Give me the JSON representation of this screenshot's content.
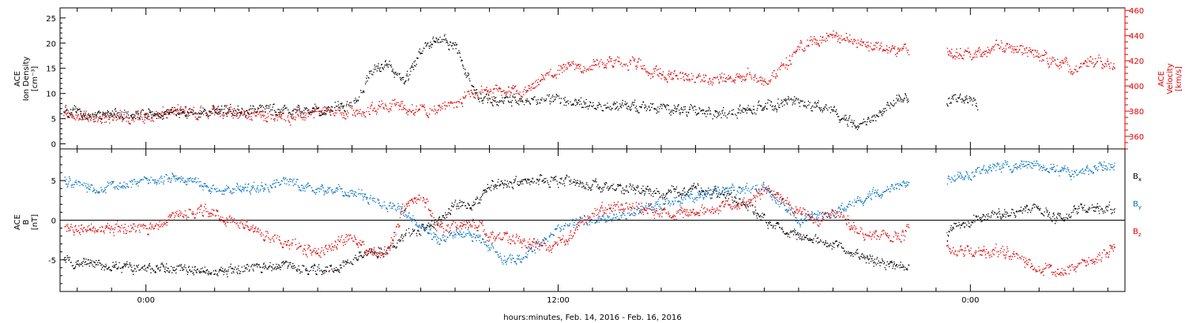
{
  "chart_data": [
    {
      "type": "scatter",
      "panel": "plasma",
      "ylabel_left": [
        "ACE",
        "Ion Density",
        "[cm⁻³]"
      ],
      "ylabel_right": [
        "ACE",
        "Velocity",
        "[km/s]"
      ],
      "xlim_hours": [
        -2.5,
        28.5
      ],
      "ylim_left": [
        -1,
        27
      ],
      "ylim_right": [
        350,
        462
      ],
      "yticks_left": [
        0,
        5,
        10,
        15,
        20,
        25
      ],
      "yticks_right": [
        360,
        380,
        400,
        420,
        440,
        460
      ],
      "colors": {
        "density": "#000000",
        "velocity": "#e00000"
      },
      "series": [
        {
          "axis": "left",
          "color": "#000000",
          "anchors": [
            [
              -2.4,
              7
            ],
            [
              -1.5,
              5.5
            ],
            [
              0,
              6
            ],
            [
              1,
              6.5
            ],
            [
              2,
              6.5
            ],
            [
              3,
              7
            ],
            [
              4,
              7
            ],
            [
              5,
              6.5
            ],
            [
              6,
              8
            ],
            [
              6.5,
              14
            ],
            [
              7,
              16
            ],
            [
              7.5,
              12
            ],
            [
              8,
              19
            ],
            [
              8.5,
              21
            ],
            [
              9,
              19
            ],
            [
              9.4,
              12
            ],
            [
              9.8,
              9
            ],
            [
              11,
              8.5
            ],
            [
              12,
              8.5
            ],
            [
              13,
              8
            ],
            [
              14,
              7.5
            ],
            [
              15,
              7
            ],
            [
              16,
              6.5
            ],
            [
              17,
              6
            ],
            [
              18,
              7.5
            ],
            [
              19,
              8.5
            ],
            [
              20,
              6.5
            ],
            [
              20.5,
              4
            ],
            [
              21,
              5
            ],
            [
              21.6,
              8
            ],
            [
              22,
              9.5
            ],
            [
              23,
              9
            ],
            [
              23.8,
              9
            ],
            [
              24.2,
              8
            ]
          ],
          "gaps": [
            [
              22.2,
              23.3
            ]
          ],
          "noise": 1.0
        },
        {
          "axis": "right",
          "color": "#e00000",
          "anchors": [
            [
              -2.4,
              378
            ],
            [
              -1.5,
              375
            ],
            [
              0,
              376
            ],
            [
              1,
              380
            ],
            [
              2,
              380
            ],
            [
              3,
              378
            ],
            [
              4,
              375
            ],
            [
              5,
              380
            ],
            [
              6,
              378
            ],
            [
              7,
              385
            ],
            [
              8,
              380
            ],
            [
              9,
              385
            ],
            [
              9.5,
              397
            ],
            [
              10,
              395
            ],
            [
              11,
              395
            ],
            [
              11.5,
              405
            ],
            [
              12,
              412
            ],
            [
              12.5,
              415
            ],
            [
              13,
              418
            ],
            [
              14,
              420
            ],
            [
              15,
              410
            ],
            [
              16,
              406
            ],
            [
              17,
              405
            ],
            [
              17.5,
              410
            ],
            [
              18,
              405
            ],
            [
              18.5,
              415
            ],
            [
              19,
              430
            ],
            [
              19.5,
              438
            ],
            [
              20,
              440
            ],
            [
              21,
              433
            ],
            [
              22,
              428
            ],
            [
              23,
              430
            ],
            [
              24,
              425
            ],
            [
              25,
              432
            ],
            [
              26,
              425
            ],
            [
              26.5,
              420
            ],
            [
              27,
              415
            ],
            [
              27.5,
              420
            ],
            [
              28,
              418
            ],
            [
              28.2,
              418
            ]
          ],
          "gaps": [
            [
              22.2,
              23.3
            ]
          ],
          "noise": 4.5
        }
      ]
    },
    {
      "type": "scatter",
      "panel": "magnetic_field",
      "ylabel_left": [
        "ACE",
        "B",
        "[nT]"
      ],
      "xlabel": "hours:minutes, Feb. 14, 2016 - Feb. 16, 2016",
      "xlim_hours": [
        -2.5,
        28.5
      ],
      "ylim": [
        -9,
        9
      ],
      "yticks": [
        -5,
        0,
        5
      ],
      "xticks": [
        {
          "hour": 0,
          "label": "0:00"
        },
        {
          "hour": 12,
          "label": "12:00"
        },
        {
          "hour": 24,
          "label": "0:00"
        }
      ],
      "zero_line": true,
      "legend_position": "right",
      "series": [
        {
          "name": "B",
          "sub": "x",
          "color": "#000000",
          "anchors": [
            [
              -2.4,
              -5
            ],
            [
              -1.5,
              -5.5
            ],
            [
              0,
              -6
            ],
            [
              1,
              -6
            ],
            [
              2,
              -6.5
            ],
            [
              3,
              -6
            ],
            [
              4,
              -5.5
            ],
            [
              5,
              -6.5
            ],
            [
              6,
              -5
            ],
            [
              6.5,
              -4
            ],
            [
              7,
              -4
            ],
            [
              7.5,
              -2
            ],
            [
              8,
              -1
            ],
            [
              8.5,
              0
            ],
            [
              9,
              2
            ],
            [
              9.5,
              2
            ],
            [
              10,
              4.5
            ],
            [
              11,
              5
            ],
            [
              12,
              5
            ],
            [
              13,
              4.5
            ],
            [
              14,
              4
            ],
            [
              15,
              3.5
            ],
            [
              16,
              4
            ],
            [
              17,
              3
            ],
            [
              17.5,
              2
            ],
            [
              18,
              0
            ],
            [
              19,
              -2
            ],
            [
              20,
              -3
            ],
            [
              21,
              -5
            ],
            [
              22,
              -6
            ],
            [
              23,
              -2
            ],
            [
              24,
              0
            ],
            [
              25,
              1
            ],
            [
              26,
              1.5
            ],
            [
              26.5,
              0
            ],
            [
              27,
              1.5
            ],
            [
              28,
              1.5
            ],
            [
              28.2,
              1
            ]
          ],
          "gaps": [
            [
              22.2,
              23.3
            ]
          ],
          "noise": 0.6
        },
        {
          "name": "B",
          "sub": "y",
          "color": "#0070c0",
          "anchors": [
            [
              -2.4,
              5
            ],
            [
              -1.5,
              4
            ],
            [
              0,
              5
            ],
            [
              1,
              5.5
            ],
            [
              2,
              4
            ],
            [
              3,
              4
            ],
            [
              4,
              5
            ],
            [
              5,
              4
            ],
            [
              6,
              3.5
            ],
            [
              7,
              2
            ],
            [
              7.5,
              1
            ],
            [
              8,
              -1
            ],
            [
              8.5,
              -2.5
            ],
            [
              9,
              -1.5
            ],
            [
              9.5,
              -2
            ],
            [
              10,
              -3.5
            ],
            [
              10.5,
              -5
            ],
            [
              11,
              -4.5
            ],
            [
              12,
              -1
            ],
            [
              13,
              0
            ],
            [
              14,
              1
            ],
            [
              15,
              2
            ],
            [
              16,
              3
            ],
            [
              17,
              4
            ],
            [
              18,
              4
            ],
            [
              19,
              0
            ],
            [
              20,
              1
            ],
            [
              21,
              3
            ],
            [
              22,
              5
            ],
            [
              23,
              5
            ],
            [
              24,
              6
            ],
            [
              25,
              7
            ],
            [
              26,
              7
            ],
            [
              27,
              6
            ],
            [
              28,
              7
            ],
            [
              28.2,
              7
            ]
          ],
          "gaps": [
            [
              22.2,
              23.3
            ]
          ],
          "noise": 0.6
        },
        {
          "name": "B",
          "sub": "z",
          "color": "#e00000",
          "anchors": [
            [
              -2.4,
              -1
            ],
            [
              -1.5,
              -1
            ],
            [
              0,
              -1
            ],
            [
              1,
              1
            ],
            [
              2,
              1
            ],
            [
              3,
              -1
            ],
            [
              4,
              -3
            ],
            [
              5,
              -4
            ],
            [
              6,
              -2
            ],
            [
              6.5,
              -4
            ],
            [
              7,
              -4
            ],
            [
              7.5,
              2
            ],
            [
              8,
              3
            ],
            [
              8.5,
              -1
            ],
            [
              9,
              -1
            ],
            [
              9.5,
              0
            ],
            [
              10,
              -2
            ],
            [
              10.5,
              -2
            ],
            [
              11,
              -3
            ],
            [
              12,
              -3
            ],
            [
              13,
              1
            ],
            [
              14,
              2
            ],
            [
              15,
              1
            ],
            [
              16,
              1
            ],
            [
              17,
              2
            ],
            [
              17.5,
              2
            ],
            [
              18,
              4
            ],
            [
              19,
              1
            ],
            [
              19.5,
              0
            ],
            [
              20,
              1
            ],
            [
              21,
              -2
            ],
            [
              22,
              -2
            ],
            [
              22.5,
              0
            ],
            [
              23,
              -3
            ],
            [
              24,
              -4
            ],
            [
              25,
              -4
            ],
            [
              25.5,
              -5
            ],
            [
              26,
              -6
            ],
            [
              26.5,
              -6.5
            ],
            [
              27,
              -6
            ],
            [
              27.5,
              -5
            ],
            [
              28,
              -4
            ],
            [
              28.2,
              -3
            ]
          ],
          "gaps": [
            [
              22.2,
              23.3
            ]
          ],
          "noise": 0.7
        }
      ]
    }
  ]
}
